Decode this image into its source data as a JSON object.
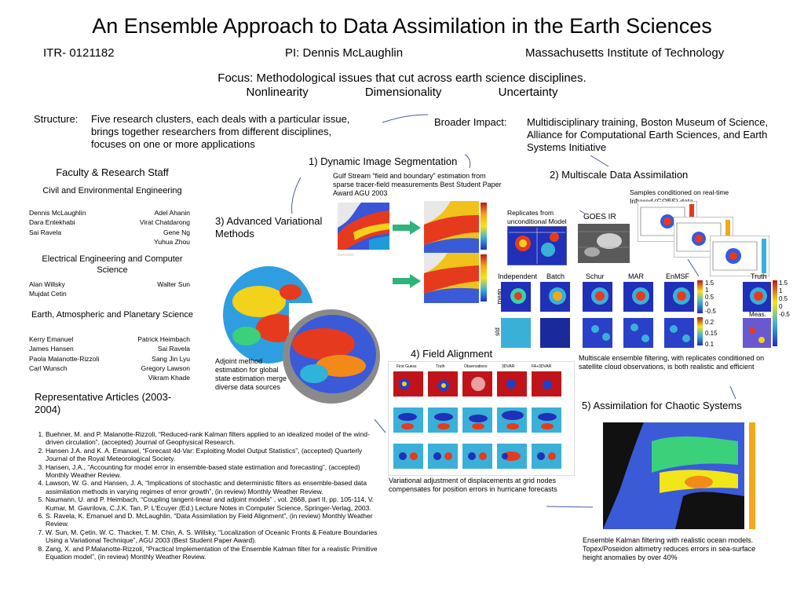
{
  "title": "An Ensemble Approach to Data Assimilation in the Earth Sciences",
  "header": {
    "grant": "ITR- 0121182",
    "pi": "PI: Dennis McLaughlin",
    "institution": "Massachusetts Institute of Technology"
  },
  "focus": {
    "line": "Focus: Methodological issues that cut across earth science disciplines.",
    "items": [
      "Nonlinearity",
      "Dimensionality",
      "Uncertainty"
    ]
  },
  "structure": {
    "label": "Structure:",
    "text": "Five research clusters, each deals with a particular issue, brings together researchers from different disciplines, focuses on one or more applications"
  },
  "broader": {
    "label": "Broader Impact:",
    "text": "Multidisciplinary training, Boston Museum of Science, Alliance for Computational Earth Sciences, and Earth Systems Initiative"
  },
  "faculty": {
    "heading": "Faculty & Research Staff",
    "groups": [
      {
        "name": "Civil and Environmental Engineering",
        "left": [
          "Dennis McLaughlin",
          "Dara Entekhabi",
          "Sai Ravela"
        ],
        "right": [
          "Adel Ahanin",
          "Virat Chatdarong",
          "Gene Ng",
          "Yuhua Zhou"
        ]
      },
      {
        "name": "Electrical Engineering and Computer Science",
        "left": [
          "Alan Willsky",
          "Mujdat Cetin"
        ],
        "right": [
          "Walter Sun"
        ]
      },
      {
        "name": "Earth, Atmospheric and Planetary Science",
        "left": [
          "Kerry Emanuel",
          "James Hansen",
          "Paola Malanotte-Rizzoli",
          "Carl Wunsch"
        ],
        "right": [
          "Patrick Heimbach",
          "Sai Ravela",
          "Sang Jin Lyu",
          "Gregory Lawson",
          "Vikram Khade"
        ]
      }
    ]
  },
  "articles": {
    "heading": "Representative Articles (2003-2004)",
    "items": [
      "Buehner, M. and P. Malanotte-Rizzoli, “Reduced-rank Kalman filters applied to an idealized model of the wind-driven circulation”, (accepted) Journal of Geophysical Research.",
      "Hansen J.A. and K. A. Emanuel, “Forecast 4d-Var: Exploiting Model Output Statistics”, (accepted) Quarterly Journal of the Royal Meteorological Society.",
      "Hansen, J.A., “Accounting for model error in ensemble-based state estimation and forecasting”, (accepted) Monthly Weather Review.",
      "Lawson, W. G. and Hansen, J. A, “Implications of stochastic and deterministic filters as ensemble-based data assimilation methods in varying regimes of error growth”, (in review) Monthly Weather Review.",
      "Naumann, U. and P. Heimbach, “Coupling tangent-linear and adjoint models” , vol. 2668, part II, pp. 105-114, V. Kumar, M. Gavrilova, C.J.K. Tan, P. L'Ecuyer (Ed.) Lecture Notes in Computer Science, Springer-Verlag, 2003.",
      "S. Ravela, K. Emanuel and D. McLaughlin, “Data Assimilation by Field Alignment”, (in review) Monthly Weather Review.",
      "W. Sun, M. Çetin, W. C. Thacker, T. M. Chin, A. S. Willsky, “Localization of Oceanic Fronts & Feature Boundaries Using a Variational Technique”, AGU 2003 (Best Student Paper Award).",
      "Zang, X. and P.Malanotte-Rizzoli,    “Practical Implementation of the Ensemble Kalman filter for a realistic Primitive Equation model”,  (in review) Monthly Weather  Review."
    ]
  },
  "clusters": {
    "c1": {
      "title": "1) Dynamic Image Segmentation",
      "caption": "Gulf Stream “field and boundary” estimation from sparse tracer-field measurements Best Student Paper Award AGU 2003"
    },
    "c2": {
      "title": "2) Multiscale Data Assimilation",
      "note_real": "Samples conditioned on real-time Infrared (GOES) data",
      "note_repl": "Replicates from unconditional Model",
      "goes": "GOES IR",
      "columns": [
        "Independent",
        "Batch",
        "Schur",
        "MAR",
        "EnMSF",
        "Truth"
      ],
      "rows": [
        "mean",
        "std"
      ],
      "meas": "Meas.",
      "cb_top": [
        "1.5",
        "1",
        "0.5",
        "0",
        "-0.5"
      ],
      "cb_mid": [
        "0.2",
        "0.15",
        "0.1"
      ],
      "cb_right": [
        "1.5",
        "1",
        "0.5",
        "0",
        "-0.5"
      ],
      "caption": "Multiscale ensemble filtering, with replicates conditioned on satellite cloud observations, is both realistic and efficient"
    },
    "c3": {
      "title": "3) Advanced Variational Methods",
      "caption": "Adjoint method estimation for global state estimation merge diverse data sources"
    },
    "c4": {
      "title": "4) Field  Alignment",
      "columns": [
        "First Guess",
        "Truth",
        "Observations",
        "3DVAR",
        "FA+3DVAR"
      ],
      "caption": "Variational adjustment of displacements at grid nodes compensates for position errors in hurricane forecasts"
    },
    "c5": {
      "title": "5) Assimilation for Chaotic Systems",
      "caption": "Ensemble Kalman filtering with realistic ocean models. Topex/Poseidon altimetry reduces errors in sea-surface height anomalies by over 40%"
    }
  },
  "colors": {
    "arrow_green": "#2fb37a",
    "connector": "#4a5aa8",
    "ocean_blue": "#1f3fd0",
    "heat_red": "#e02a1a"
  }
}
